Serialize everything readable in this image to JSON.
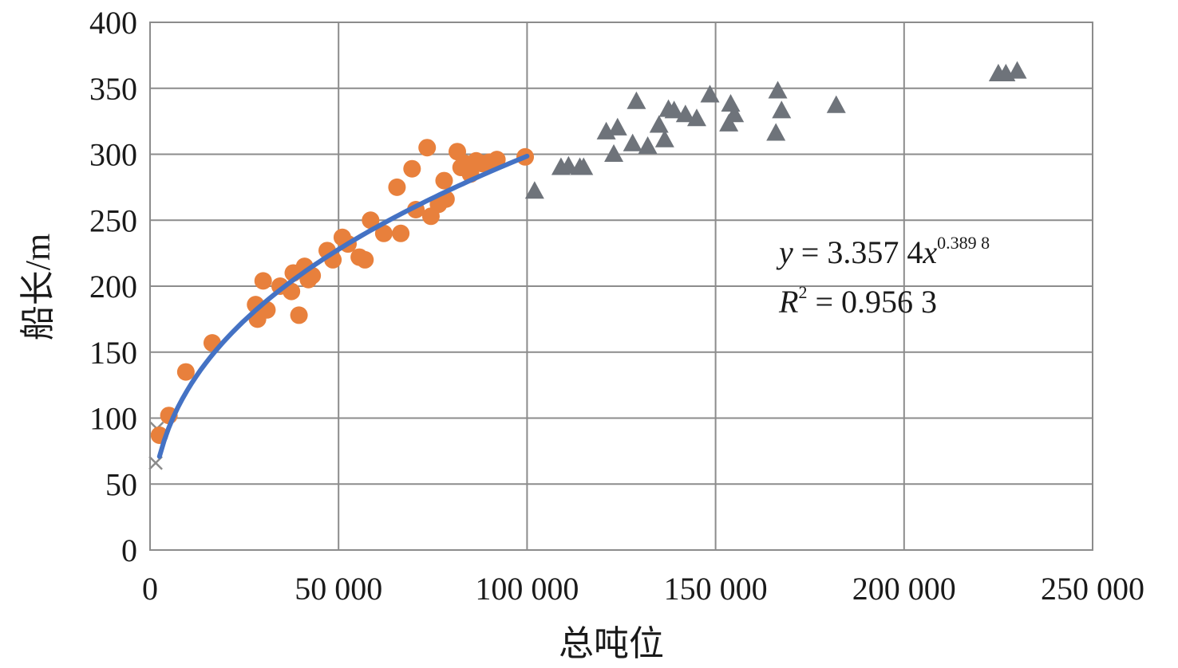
{
  "chart_data": {
    "type": "scatter",
    "title": "",
    "xlabel": "总吨位",
    "ylabel": "船长/m",
    "xlim": [
      0,
      250000
    ],
    "ylim": [
      0,
      400
    ],
    "grid": true,
    "x_ticks": [
      0,
      50000,
      100000,
      150000,
      200000,
      250000
    ],
    "x_tick_labels": [
      "0",
      "50 000",
      "100 000",
      "150 000",
      "200 000",
      "250 000"
    ],
    "y_ticks": [
      0,
      50,
      100,
      150,
      200,
      250,
      300,
      350,
      400
    ],
    "y_tick_labels": [
      "0",
      "50",
      "100",
      "150",
      "200",
      "250",
      "300",
      "350",
      "400"
    ],
    "colors": {
      "orange": "#E8803C",
      "gray": "#6E737A",
      "blue": "#4472C4",
      "cross": "#8C8C8C",
      "grid": "#8C8C8C"
    },
    "series": [
      {
        "marker": "x",
        "color": "#8C8C8C",
        "points": [
          [
            1500,
            66
          ],
          [
            1800,
            92
          ]
        ]
      },
      {
        "marker": "circle",
        "color": "#E8803C",
        "points": [
          [
            2500,
            87
          ],
          [
            5000,
            102
          ],
          [
            9500,
            135
          ],
          [
            16500,
            157
          ],
          [
            28000,
            186
          ],
          [
            28500,
            175
          ],
          [
            30000,
            204
          ],
          [
            31000,
            182
          ],
          [
            34500,
            200
          ],
          [
            37500,
            196
          ],
          [
            38000,
            210
          ],
          [
            39500,
            178
          ],
          [
            41000,
            215
          ],
          [
            42000,
            205
          ],
          [
            43000,
            208
          ],
          [
            47000,
            227
          ],
          [
            48500,
            220
          ],
          [
            51000,
            237
          ],
          [
            52500,
            232
          ],
          [
            55500,
            222
          ],
          [
            57000,
            220
          ],
          [
            58500,
            250
          ],
          [
            62000,
            240
          ],
          [
            65500,
            275
          ],
          [
            66500,
            240
          ],
          [
            69500,
            289
          ],
          [
            70500,
            258
          ],
          [
            73500,
            305
          ],
          [
            74500,
            253
          ],
          [
            76500,
            262
          ],
          [
            78000,
            280
          ],
          [
            78500,
            266
          ],
          [
            81500,
            302
          ],
          [
            82500,
            290
          ],
          [
            83500,
            293
          ],
          [
            85000,
            285
          ],
          [
            86500,
            295
          ],
          [
            88000,
            293
          ],
          [
            90000,
            294
          ],
          [
            92000,
            296
          ],
          [
            99500,
            298
          ]
        ]
      },
      {
        "marker": "triangle",
        "color": "#6E737A",
        "points": [
          [
            102000,
            272
          ],
          [
            109000,
            290
          ],
          [
            111000,
            291
          ],
          [
            114000,
            290
          ],
          [
            115000,
            290
          ],
          [
            121000,
            317
          ],
          [
            123000,
            300
          ],
          [
            124000,
            320
          ],
          [
            128000,
            308
          ],
          [
            129000,
            340
          ],
          [
            132000,
            306
          ],
          [
            135000,
            322
          ],
          [
            136500,
            311
          ],
          [
            137500,
            334
          ],
          [
            139000,
            333
          ],
          [
            142000,
            330
          ],
          [
            145000,
            327
          ],
          [
            148500,
            345
          ],
          [
            153500,
            323
          ],
          [
            154000,
            338
          ],
          [
            155000,
            330
          ],
          [
            166000,
            316
          ],
          [
            166500,
            348
          ],
          [
            167500,
            333
          ],
          [
            182000,
            337
          ],
          [
            225000,
            361
          ],
          [
            227000,
            361
          ],
          [
            230000,
            363
          ]
        ]
      }
    ],
    "trendline": {
      "color": "#4472C4",
      "equation": "y = 3.3574 x^0.3898",
      "coefficient": 3.3574,
      "exponent": 0.3898,
      "x_range": [
        2500,
        100000
      ]
    },
    "annotations": {
      "eq_y": "y",
      "eq_mid": " = 3.357 4",
      "eq_x": "x",
      "eq_exp": "0.389 8",
      "r_R": "R",
      "r_exp": "2",
      "r_rest": " = 0.956 3"
    }
  }
}
